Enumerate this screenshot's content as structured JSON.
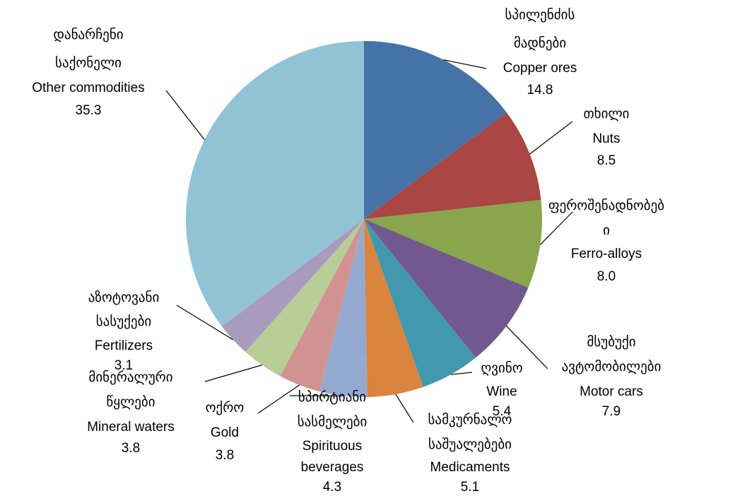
{
  "chart_data": {
    "type": "pie",
    "categories": [
      [
        "სპილენძის",
        "მადნები",
        "Copper ores"
      ],
      [
        "თხილი",
        "Nuts"
      ],
      [
        "ფეროშენადნობებ",
        "ი",
        "Ferro-alloys"
      ],
      [
        "მსუბუქი",
        "ავტომობილები",
        "Motor cars"
      ],
      [
        "ღვინო",
        "Wine"
      ],
      [
        "სამკურნალო",
        "საშუალებები",
        "Medicaments"
      ],
      [
        "სპირტიანი",
        "სასმელები",
        "Spirituous",
        "beverages"
      ],
      [
        "ოქრო",
        "Gold"
      ],
      [
        "მინერალური",
        "წყლები",
        "Mineral waters"
      ],
      [
        "აზოტოვანი",
        "სასუქები",
        "Fertilizers"
      ],
      [
        "დანარჩენი",
        "საქონელი",
        "Other commodities"
      ]
    ],
    "values": [
      14.8,
      8.5,
      8.0,
      7.9,
      5.4,
      5.1,
      4.3,
      3.8,
      3.8,
      3.1,
      35.3
    ],
    "value_labels": [
      "14.8",
      "8.5",
      "8.0",
      "7.9",
      "5.4",
      "5.1",
      "4.3",
      "3.8",
      "3.8",
      "3.1",
      "35.3"
    ],
    "colors": [
      "#4572a7",
      "#aa4643",
      "#89a54e",
      "#71588f",
      "#4198af",
      "#db843d",
      "#93a9cf",
      "#d19392",
      "#b9cd96",
      "#a99bbd",
      "#92c3d4"
    ]
  }
}
